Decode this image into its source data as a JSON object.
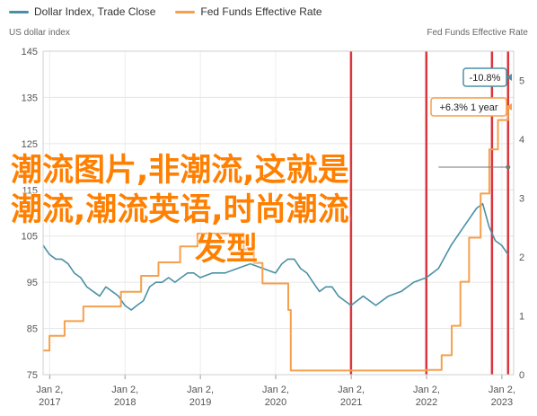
{
  "legend": [
    {
      "label": "Dollar Index, Trade Close",
      "color": "#4a90a4"
    },
    {
      "label": "Fed Funds Effective Rate",
      "color": "#f5a04c"
    }
  ],
  "overlay": {
    "line1": "潮流图片,非潮流,这就是",
    "line2": "潮流,潮流英语,时尚潮流",
    "line3": "发型"
  },
  "chart_data": {
    "type": "line",
    "left_axis_title": "US dollar index",
    "right_axis_title": "Fed Funds Effective Rate",
    "left_ticks": [
      "145",
      "135",
      "125",
      "115",
      "105",
      "95",
      "85",
      "75"
    ],
    "right_ticks": [
      "5",
      "4",
      "3",
      "2",
      "1",
      "0"
    ],
    "ylim_left": [
      75,
      145
    ],
    "ylim_right": [
      0,
      5.5
    ],
    "x_ticks": [
      {
        "month": "Jan 2,",
        "year": "2017"
      },
      {
        "month": "Jan 2,",
        "year": "2018"
      },
      {
        "month": "Jan 2,",
        "year": "2019"
      },
      {
        "month": "Jan 2,",
        "year": "2020"
      },
      {
        "month": "Jan 2,",
        "year": "2021"
      },
      {
        "month": "Jan 2,",
        "year": "2022"
      },
      {
        "month": "Jan 2,",
        "year": "2023"
      }
    ],
    "grid": true,
    "annotations": [
      {
        "label": "-10.8%",
        "series": "Dollar Index, Trade Close"
      },
      {
        "label": "+6.3% 1 year",
        "series": "Fed Funds Effective Rate"
      }
    ],
    "series": [
      {
        "name": "Dollar Index, Trade Close",
        "color": "#4a90a4",
        "axis": "left",
        "x": [
          "2016-12-01",
          "2017-01-01",
          "2017-02-01",
          "2017-03-01",
          "2017-04-01",
          "2017-05-01",
          "2017-06-01",
          "2017-07-01",
          "2017-08-01",
          "2017-09-01",
          "2017-10-01",
          "2017-11-01",
          "2017-12-01",
          "2018-01-01",
          "2018-02-01",
          "2018-03-01",
          "2018-04-01",
          "2018-05-01",
          "2018-06-01",
          "2018-07-01",
          "2018-08-01",
          "2018-09-01",
          "2018-10-01",
          "2018-11-01",
          "2018-12-01",
          "2019-01-01",
          "2019-03-01",
          "2019-05-01",
          "2019-07-01",
          "2019-09-01",
          "2019-11-01",
          "2020-01-01",
          "2020-02-01",
          "2020-03-01",
          "2020-04-01",
          "2020-05-01",
          "2020-06-01",
          "2020-07-01",
          "2020-08-01",
          "2020-09-01",
          "2020-10-01",
          "2020-11-01",
          "2020-12-01",
          "2021-01-01",
          "2021-03-01",
          "2021-05-01",
          "2021-07-01",
          "2021-09-01",
          "2021-11-01",
          "2022-01-01",
          "2022-03-01",
          "2022-05-01",
          "2022-07-01",
          "2022-09-01",
          "2022-10-01",
          "2022-11-01",
          "2022-12-01",
          "2023-01-01",
          "2023-02-01"
        ],
        "y": [
          103,
          101,
          100,
          100,
          99,
          97,
          96,
          94,
          93,
          92,
          94,
          93,
          92,
          90,
          89,
          90,
          91,
          94,
          95,
          95,
          96,
          95,
          96,
          97,
          97,
          96,
          97,
          97,
          98,
          99,
          98,
          97,
          99,
          100,
          100,
          98,
          97,
          95,
          93,
          94,
          94,
          92,
          91,
          90,
          92,
          90,
          92,
          93,
          95,
          96,
          98,
          103,
          107,
          111,
          112,
          107,
          104,
          103,
          101
        ]
      },
      {
        "name": "Fed Funds Effective Rate",
        "color": "#f5a04c",
        "axis": "right",
        "x": [
          "2016-12-01",
          "2017-01-01",
          "2017-03-15",
          "2017-06-14",
          "2017-12-13",
          "2018-03-21",
          "2018-06-13",
          "2018-09-26",
          "2018-12-19",
          "2019-07-31",
          "2019-09-18",
          "2019-10-30",
          "2020-03-03",
          "2020-03-15",
          "2021-01-01",
          "2022-01-01",
          "2022-03-16",
          "2022-05-04",
          "2022-06-15",
          "2022-07-27",
          "2022-09-21",
          "2022-11-02",
          "2022-12-14",
          "2023-02-01"
        ],
        "y": [
          0.41,
          0.66,
          0.91,
          1.16,
          1.41,
          1.68,
          1.91,
          2.18,
          2.4,
          2.13,
          1.9,
          1.55,
          1.1,
          0.07,
          0.07,
          0.08,
          0.33,
          0.83,
          1.58,
          2.33,
          3.08,
          3.83,
          4.33,
          4.58
        ]
      }
    ]
  }
}
